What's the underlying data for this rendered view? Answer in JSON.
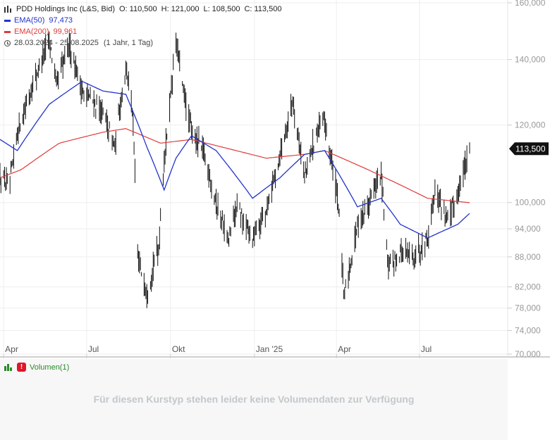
{
  "legend": {
    "title": "PDD Holdings Inc (L&S, Bid)",
    "open": "O: 110,500",
    "high": "H: 121,000",
    "low": "L: 108,500",
    "close": "C: 113,500",
    "ema50_label": "EMA(50)",
    "ema50_value": "97,473",
    "ema200_label": "EMA(200)",
    "ema200_value": "99,961",
    "range": "28.03.2024 - 25.08.2025",
    "range_note": "(1 Jahr, 1 Tag)"
  },
  "volume": {
    "label": "Volumen(1)",
    "message": "Für diesen Kurstyp stehen leider keine Volumendaten zur Verfügung"
  },
  "colors": {
    "ema50": "#2233cc",
    "ema200": "#e03a3a",
    "bars": "#111111",
    "grid": "#eeeeee",
    "price_tag": "#111111"
  },
  "chart_data": {
    "type": "ohlc-bar",
    "title": "PDD Holdings Inc (L&S, Bid)",
    "y_scale": "log",
    "ylim": [
      70,
      160
    ],
    "y_ticks": [
      70,
      74,
      78,
      82,
      88,
      94,
      100,
      120,
      140,
      160
    ],
    "y_tick_labels": [
      "70,000",
      "74,000",
      "78,000",
      "82,000",
      "88,000",
      "94,000",
      "100,000",
      "120,000",
      "140,000",
      "160,000"
    ],
    "x_ticks": [
      {
        "date": "2024-04-01",
        "label": "Apr"
      },
      {
        "date": "2024-07-01",
        "label": "Jul"
      },
      {
        "date": "2024-10-01",
        "label": "Okt"
      },
      {
        "date": "2025-01-01",
        "label": "Jan '25"
      },
      {
        "date": "2025-04-01",
        "label": "Apr"
      },
      {
        "date": "2025-07-01",
        "label": "Jul"
      }
    ],
    "last_price": 113.5,
    "last_price_label": "113,500",
    "price_anchors": [
      {
        "date": "2024-03-28",
        "price": 106
      },
      {
        "date": "2024-04-08",
        "price": 104
      },
      {
        "date": "2024-04-16",
        "price": 118
      },
      {
        "date": "2024-05-01",
        "price": 130
      },
      {
        "date": "2024-05-21",
        "price": 147
      },
      {
        "date": "2024-05-29",
        "price": 132
      },
      {
        "date": "2024-06-12",
        "price": 145
      },
      {
        "date": "2024-06-26",
        "price": 130
      },
      {
        "date": "2024-07-08",
        "price": 127
      },
      {
        "date": "2024-07-19",
        "price": 123
      },
      {
        "date": "2024-08-01",
        "price": 114
      },
      {
        "date": "2024-08-13",
        "price": 138
      },
      {
        "date": "2024-08-20",
        "price": 125
      },
      {
        "date": "2024-08-26",
        "price": 88
      },
      {
        "date": "2024-09-05",
        "price": 81
      },
      {
        "date": "2024-09-18",
        "price": 90
      },
      {
        "date": "2024-09-24",
        "price": 110
      },
      {
        "date": "2024-10-01",
        "price": 128
      },
      {
        "date": "2024-10-07",
        "price": 146
      },
      {
        "date": "2024-10-15",
        "price": 130
      },
      {
        "date": "2024-10-24",
        "price": 118
      },
      {
        "date": "2024-11-06",
        "price": 113
      },
      {
        "date": "2024-11-20",
        "price": 100
      },
      {
        "date": "2024-12-04",
        "price": 91
      },
      {
        "date": "2024-12-12",
        "price": 99
      },
      {
        "date": "2024-12-30",
        "price": 92
      },
      {
        "date": "2025-01-14",
        "price": 98
      },
      {
        "date": "2025-01-29",
        "price": 112
      },
      {
        "date": "2025-02-12",
        "price": 127
      },
      {
        "date": "2025-02-25",
        "price": 106
      },
      {
        "date": "2025-03-10",
        "price": 118
      },
      {
        "date": "2025-03-19",
        "price": 121
      },
      {
        "date": "2025-04-03",
        "price": 100
      },
      {
        "date": "2025-04-09",
        "price": 80
      },
      {
        "date": "2025-04-16",
        "price": 86
      },
      {
        "date": "2025-04-24",
        "price": 95
      },
      {
        "date": "2025-05-06",
        "price": 100
      },
      {
        "date": "2025-05-20",
        "price": 107
      },
      {
        "date": "2025-05-27",
        "price": 86
      },
      {
        "date": "2025-06-10",
        "price": 89
      },
      {
        "date": "2025-06-25",
        "price": 88
      },
      {
        "date": "2025-07-10",
        "price": 92
      },
      {
        "date": "2025-07-18",
        "price": 103
      },
      {
        "date": "2025-08-01",
        "price": 96
      },
      {
        "date": "2025-08-12",
        "price": 102
      },
      {
        "date": "2025-08-20",
        "price": 109
      },
      {
        "date": "2025-08-25",
        "price": 113.5
      }
    ],
    "ema50_anchors": [
      {
        "date": "2024-03-28",
        "value": 116
      },
      {
        "date": "2024-04-16",
        "value": 113
      },
      {
        "date": "2024-05-21",
        "value": 126
      },
      {
        "date": "2024-06-26",
        "value": 133
      },
      {
        "date": "2024-07-19",
        "value": 130
      },
      {
        "date": "2024-08-13",
        "value": 129
      },
      {
        "date": "2024-09-05",
        "value": 114
      },
      {
        "date": "2024-09-24",
        "value": 103
      },
      {
        "date": "2024-10-07",
        "value": 111
      },
      {
        "date": "2024-10-24",
        "value": 117
      },
      {
        "date": "2024-11-20",
        "value": 113
      },
      {
        "date": "2024-12-30",
        "value": 101
      },
      {
        "date": "2025-01-29",
        "value": 106
      },
      {
        "date": "2025-02-25",
        "value": 112
      },
      {
        "date": "2025-03-19",
        "value": 113
      },
      {
        "date": "2025-04-24",
        "value": 99
      },
      {
        "date": "2025-05-20",
        "value": 101
      },
      {
        "date": "2025-06-10",
        "value": 95
      },
      {
        "date": "2025-07-10",
        "value": 92
      },
      {
        "date": "2025-08-12",
        "value": 95
      },
      {
        "date": "2025-08-25",
        "value": 97.473
      }
    ],
    "ema200_anchors": [
      {
        "date": "2024-03-28",
        "value": 106
      },
      {
        "date": "2024-04-20",
        "value": 108
      },
      {
        "date": "2024-06-01",
        "value": 115
      },
      {
        "date": "2024-07-19",
        "value": 118
      },
      {
        "date": "2024-08-13",
        "value": 119
      },
      {
        "date": "2024-09-20",
        "value": 115
      },
      {
        "date": "2024-10-24",
        "value": 116
      },
      {
        "date": "2024-12-12",
        "value": 113
      },
      {
        "date": "2025-01-14",
        "value": 111
      },
      {
        "date": "2025-02-25",
        "value": 112
      },
      {
        "date": "2025-03-19",
        "value": 113
      },
      {
        "date": "2025-05-06",
        "value": 108
      },
      {
        "date": "2025-07-10",
        "value": 101
      },
      {
        "date": "2025-08-25",
        "value": 99.961
      }
    ]
  }
}
